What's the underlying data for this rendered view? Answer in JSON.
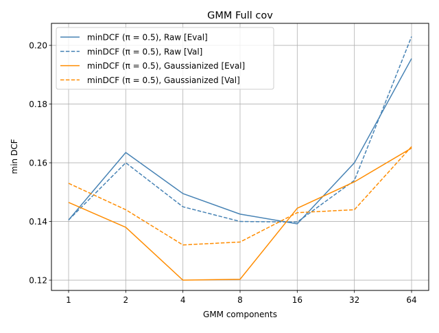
{
  "chart_data": {
    "type": "line",
    "title": "GMM Full cov",
    "xlabel": "GMM components",
    "ylabel": "min DCF",
    "categories": [
      "1",
      "2",
      "4",
      "8",
      "16",
      "32",
      "64"
    ],
    "xscale": "log2 (categorical tick labels)",
    "ylim": [
      0.1165,
      0.2075
    ],
    "yticks": [
      0.12,
      0.14,
      0.16,
      0.18,
      0.2
    ],
    "ytick_labels": [
      "0.12",
      "0.14",
      "0.16",
      "0.18",
      "0.20"
    ],
    "grid": true,
    "legend_position": "top-left",
    "series": [
      {
        "name": "minDCF (π = 0.5), Raw [Eval]",
        "color": "#4682b4",
        "linestyle": "solid",
        "values": [
          0.1405,
          0.1635,
          0.1495,
          0.1425,
          0.1392,
          0.16,
          0.1955
        ]
      },
      {
        "name": "minDCF (π = 0.5), Raw [Val]",
        "color": "#4682b4",
        "linestyle": "dashed",
        "values": [
          0.1405,
          0.16,
          0.145,
          0.14,
          0.1398,
          0.154,
          0.203
        ]
      },
      {
        "name": "minDCF (π = 0.5), Gaussianized [Eval]",
        "color": "#ff8c00",
        "linestyle": "solid",
        "values": [
          0.1465,
          0.138,
          0.12,
          0.1203,
          0.1445,
          0.1535,
          0.165
        ]
      },
      {
        "name": "minDCF (π = 0.5), Gaussianized [Val]",
        "color": "#ff8c00",
        "linestyle": "dashed",
        "values": [
          0.153,
          0.144,
          0.132,
          0.133,
          0.143,
          0.144,
          0.1655
        ]
      }
    ]
  }
}
